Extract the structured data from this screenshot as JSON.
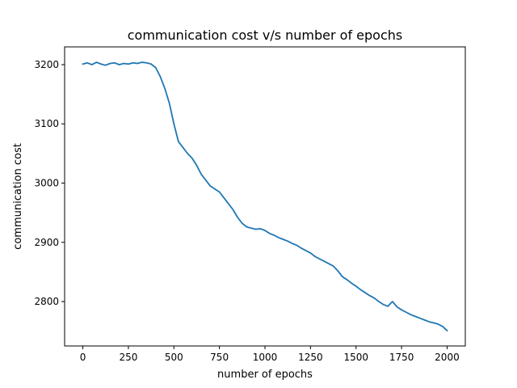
{
  "chart_data": {
    "type": "line",
    "title": "communication cost v/s number of epochs",
    "xlabel": "number of epochs",
    "ylabel": "communication cost",
    "xlim": [
      -100,
      2100
    ],
    "ylim": [
      2725,
      3230
    ],
    "xticks": [
      0,
      250,
      500,
      750,
      1000,
      1250,
      1500,
      1750,
      2000
    ],
    "xtick_labels": [
      "0",
      "250",
      "500",
      "750",
      "1000",
      "1250",
      "1500",
      "1750",
      "2000"
    ],
    "yticks": [
      2800,
      2900,
      3000,
      3100,
      3200
    ],
    "ytick_labels": [
      "2800",
      "2900",
      "3000",
      "3100",
      "3200"
    ],
    "grid": false,
    "legend": "none",
    "series": [
      {
        "color": "#1f77b4",
        "x": [
          0,
          25,
          50,
          75,
          100,
          125,
          150,
          175,
          200,
          225,
          250,
          275,
          300,
          325,
          350,
          375,
          400,
          425,
          450,
          475,
          500,
          525,
          550,
          575,
          600,
          625,
          650,
          675,
          700,
          725,
          750,
          775,
          800,
          825,
          850,
          875,
          900,
          925,
          950,
          975,
          1000,
          1025,
          1050,
          1075,
          1100,
          1125,
          1150,
          1175,
          1200,
          1225,
          1250,
          1275,
          1300,
          1325,
          1350,
          1375,
          1400,
          1425,
          1450,
          1475,
          1500,
          1525,
          1550,
          1575,
          1600,
          1625,
          1650,
          1675,
          1700,
          1725,
          1750,
          1775,
          1800,
          1825,
          1850,
          1875,
          1900,
          1925,
          1950,
          1975,
          2000
        ],
        "values": [
          3201,
          3203,
          3200,
          3204,
          3201,
          3199,
          3202,
          3203,
          3200,
          3202,
          3201,
          3203,
          3202,
          3204,
          3203,
          3201,
          3195,
          3180,
          3160,
          3135,
          3100,
          3070,
          3060,
          3050,
          3042,
          3030,
          3015,
          3005,
          2995,
          2990,
          2985,
          2975,
          2965,
          2955,
          2942,
          2932,
          2926,
          2924,
          2922,
          2923,
          2920,
          2915,
          2912,
          2908,
          2905,
          2902,
          2898,
          2895,
          2890,
          2886,
          2882,
          2876,
          2872,
          2868,
          2864,
          2860,
          2852,
          2842,
          2837,
          2831,
          2826,
          2820,
          2815,
          2810,
          2806,
          2800,
          2795,
          2792,
          2800,
          2791,
          2786,
          2782,
          2778,
          2775,
          2772,
          2769,
          2766,
          2764,
          2762,
          2758,
          2751
        ]
      }
    ]
  }
}
